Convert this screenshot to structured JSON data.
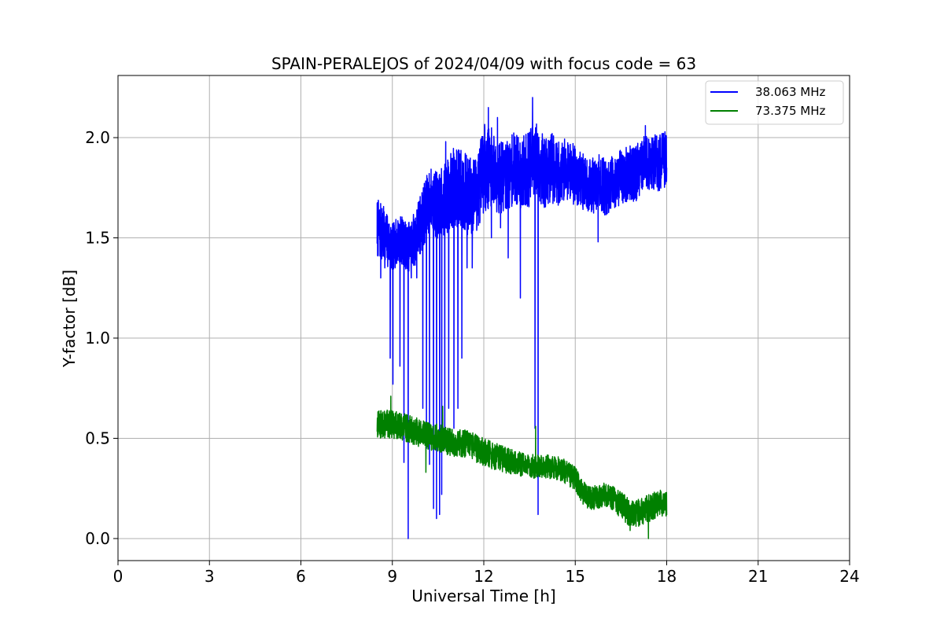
{
  "chart_data": {
    "type": "line",
    "title": "SPAIN-PERALEJOS of 2024/04/09 with focus code = 63",
    "xlabel": "Universal Time [h]",
    "ylabel": "Y-factor [dB]",
    "xlim": [
      0,
      24
    ],
    "ylim": [
      -0.11,
      2.31
    ],
    "xticks": [
      "0",
      "3",
      "6",
      "9",
      "12",
      "15",
      "18",
      "21",
      "24"
    ],
    "yticks": [
      "0.0",
      "0.5",
      "1.0",
      "1.5",
      "2.0"
    ],
    "xtick_values": [
      0,
      3,
      6,
      9,
      12,
      15,
      18,
      21,
      24
    ],
    "ytick_values": [
      0.0,
      0.5,
      1.0,
      1.5,
      2.0
    ],
    "grid": true,
    "legend_position": "top-right",
    "series": [
      {
        "name": "38.063 MHz",
        "color": "#0000ff",
        "x": [
          8.5,
          8.75,
          9.0,
          9.25,
          9.5,
          9.75,
          10.0,
          10.25,
          10.5,
          10.75,
          11.0,
          11.25,
          11.5,
          11.75,
          12.0,
          12.25,
          12.5,
          12.75,
          13.0,
          13.25,
          13.5,
          13.75,
          14.0,
          14.25,
          14.5,
          14.75,
          15.0,
          15.25,
          15.5,
          15.75,
          16.0,
          16.25,
          16.5,
          16.75,
          17.0,
          17.25,
          17.5,
          17.75,
          18.0
        ],
        "y": [
          1.55,
          1.5,
          1.45,
          1.5,
          1.45,
          1.5,
          1.6,
          1.7,
          1.65,
          1.7,
          1.75,
          1.75,
          1.7,
          1.72,
          1.85,
          1.85,
          1.8,
          1.8,
          1.85,
          1.82,
          1.85,
          1.88,
          1.82,
          1.85,
          1.82,
          1.85,
          1.82,
          1.78,
          1.75,
          1.78,
          1.75,
          1.78,
          1.8,
          1.82,
          1.82,
          1.88,
          1.88,
          1.87,
          1.9
        ],
        "amplitude": [
          0.15,
          0.15,
          0.12,
          0.12,
          0.12,
          0.14,
          0.16,
          0.16,
          0.17,
          0.18,
          0.2,
          0.2,
          0.2,
          0.2,
          0.22,
          0.2,
          0.18,
          0.18,
          0.18,
          0.18,
          0.2,
          0.2,
          0.18,
          0.18,
          0.16,
          0.16,
          0.16,
          0.14,
          0.14,
          0.14,
          0.14,
          0.14,
          0.14,
          0.14,
          0.14,
          0.14,
          0.14,
          0.14,
          0.14
        ],
        "dips": [
          [
            8.62,
            1.3
          ],
          [
            8.93,
            0.9
          ],
          [
            9.02,
            0.77
          ],
          [
            9.25,
            0.86
          ],
          [
            9.38,
            0.38
          ],
          [
            9.52,
            0.0
          ],
          [
            9.62,
            1.3
          ],
          [
            9.8,
            1.3
          ],
          [
            10.0,
            0.65
          ],
          [
            10.12,
            0.45
          ],
          [
            10.22,
            0.37
          ],
          [
            10.35,
            0.15
          ],
          [
            10.45,
            0.1
          ],
          [
            10.55,
            0.12
          ],
          [
            10.62,
            0.22
          ],
          [
            10.72,
            0.45
          ],
          [
            10.85,
            0.65
          ],
          [
            11.02,
            0.55
          ],
          [
            11.15,
            0.65
          ],
          [
            11.28,
            0.9
          ],
          [
            11.45,
            1.35
          ],
          [
            11.62,
            1.35
          ],
          [
            12.25,
            1.5
          ],
          [
            12.55,
            1.55
          ],
          [
            12.8,
            1.4
          ],
          [
            13.2,
            1.2
          ],
          [
            13.68,
            0.55
          ],
          [
            13.78,
            0.12
          ],
          [
            15.75,
            1.48
          ]
        ],
        "spikes": [
          [
            10.75,
            1.98
          ],
          [
            12.15,
            2.15
          ],
          [
            12.45,
            2.1
          ],
          [
            13.6,
            2.2
          ],
          [
            17.3,
            2.06
          ]
        ],
        "seed": 7
      },
      {
        "name": "73.375 MHz",
        "color": "#008000",
        "x": [
          8.5,
          9.0,
          9.5,
          10.0,
          10.5,
          11.0,
          11.5,
          12.0,
          12.5,
          13.0,
          13.5,
          14.0,
          14.5,
          15.0,
          15.25,
          15.5,
          15.75,
          16.0,
          16.25,
          16.5,
          16.75,
          17.0,
          17.5,
          18.0
        ],
        "y": [
          0.57,
          0.57,
          0.55,
          0.52,
          0.5,
          0.48,
          0.47,
          0.43,
          0.4,
          0.38,
          0.36,
          0.36,
          0.35,
          0.3,
          0.23,
          0.2,
          0.21,
          0.22,
          0.2,
          0.17,
          0.13,
          0.12,
          0.16,
          0.18
        ],
        "amplitude": [
          0.07,
          0.07,
          0.07,
          0.07,
          0.07,
          0.07,
          0.07,
          0.07,
          0.07,
          0.06,
          0.06,
          0.06,
          0.06,
          0.06,
          0.06,
          0.06,
          0.06,
          0.06,
          0.06,
          0.07,
          0.07,
          0.07,
          0.07,
          0.07
        ],
        "dips": [
          [
            10.1,
            0.33
          ],
          [
            16.8,
            0.04
          ],
          [
            17.4,
            0.0
          ]
        ],
        "spikes": [
          [
            8.95,
            0.71
          ],
          [
            10.65,
            0.66
          ],
          [
            13.7,
            0.56
          ]
        ],
        "seed": 13
      }
    ]
  }
}
